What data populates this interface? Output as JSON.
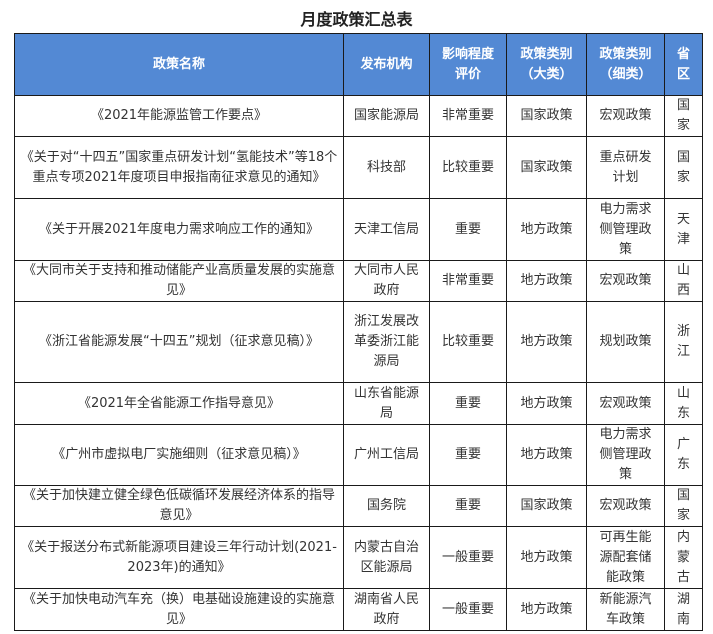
{
  "title": "月度政策汇总表",
  "headers": [
    "政策名称",
    "发布机构",
    "影响程度评价",
    "政策类别（大类）",
    "政策类别（细类）",
    "省区"
  ],
  "rows": [
    {
      "name": "《2021年能源监管工作要点》",
      "org": "国家能源局",
      "impact": "非常重要",
      "major": "国家政策",
      "minor": "宏观政策",
      "region": "国家"
    },
    {
      "name": "《关于对“十四五”国家重点研发计划“氢能技术”等18个重点专项2021年度项目申报指南征求意见的通知》",
      "org": "科技部",
      "impact": "比较重要",
      "major": "国家政策",
      "minor": "重点研发计划",
      "region": "国家"
    },
    {
      "name": "《关于开展2021年度电力需求响应工作的通知》",
      "org": "天津工信局",
      "impact": "重要",
      "major": "地方政策",
      "minor": "电力需求侧管理政策",
      "region": "天津"
    },
    {
      "name": "《大同市关于支持和推动储能产业高质量发展的实施意见》",
      "org": "大同市人民政府",
      "impact": "非常重要",
      "major": "地方政策",
      "minor": "宏观政策",
      "region": "山西"
    },
    {
      "name": "《浙江省能源发展“十四五”规划（征求意见稿）》",
      "org": "浙江发展改革委浙江能源局",
      "impact": "比较重要",
      "major": "地方政策",
      "minor": "规划政策",
      "region": "浙江"
    },
    {
      "name": "《2021年全省能源工作指导意见》",
      "org": "山东省能源局",
      "impact": "重要",
      "major": "地方政策",
      "minor": "宏观政策",
      "region": "山东"
    },
    {
      "name": "《广州市虚拟电厂实施细则（征求意见稿）》",
      "org": "广州工信局",
      "impact": "重要",
      "major": "地方政策",
      "minor": "电力需求侧管理政策",
      "region": "广东"
    },
    {
      "name": "《关于加快建立健全绿色低碳循环发展经济体系的指导意见》",
      "org": "国务院",
      "impact": "重要",
      "major": "国家政策",
      "minor": "宏观政策",
      "region": "国家"
    },
    {
      "name": "《关于报送分布式新能源项目建设三年行动计划(2021-2023年)的通知》",
      "org": "内蒙古自治区能源局",
      "impact": "一般重要",
      "major": "地方政策",
      "minor": "可再生能源配套储能政策",
      "region": "内蒙古"
    },
    {
      "name": "《关于加快电动汽车充（换）电基础设施建设的实施意见》",
      "org": "湖南省人民政府",
      "impact": "一般重要",
      "major": "地方政策",
      "minor": "新能源汽车政策",
      "region": "湖南"
    }
  ]
}
